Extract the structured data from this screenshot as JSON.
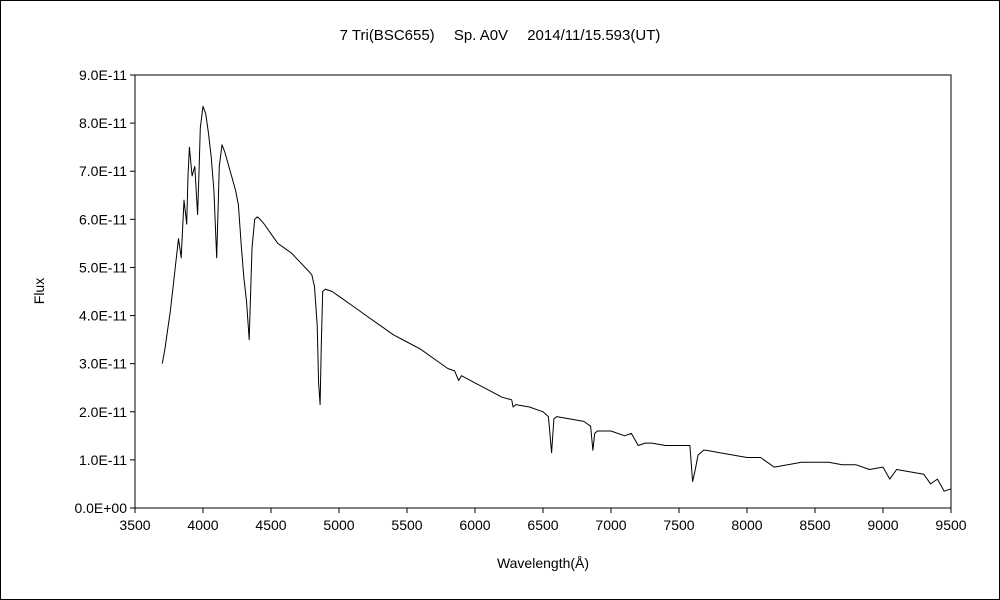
{
  "chart_data": {
    "type": "line",
    "title": "7 Tri(BSC655)　 Sp. A0V　 2014/11/15.593(UT)",
    "xlabel": "Wavelength(Å)",
    "ylabel": "Flux",
    "xlim": [
      3500,
      9500
    ],
    "ylim": [
      0,
      9e-11
    ],
    "x_ticks": [
      3500,
      4000,
      4500,
      5000,
      5500,
      6000,
      6500,
      7000,
      7500,
      8000,
      8500,
      9000,
      9500
    ],
    "x_tick_labels": [
      "3500",
      "4000",
      "4500",
      "5000",
      "5500",
      "6000",
      "6500",
      "7000",
      "7500",
      "8000",
      "8500",
      "9000",
      "9500"
    ],
    "y_ticks": [
      0,
      1e-11,
      2e-11,
      3e-11,
      4e-11,
      5e-11,
      6e-11,
      7e-11,
      8e-11,
      9e-11
    ],
    "y_tick_labels": [
      "0.0E+00",
      "1.0E-11",
      "2.0E-11",
      "3.0E-11",
      "4.0E-11",
      "5.0E-11",
      "6.0E-11",
      "7.0E-11",
      "8.0E-11",
      "9.0E-11"
    ],
    "grid": false,
    "legend": "none",
    "line_color": "#000000",
    "series": [
      {
        "x": [
          3700,
          3720,
          3740,
          3760,
          3780,
          3800,
          3820,
          3840,
          3860,
          3880,
          3890,
          3900,
          3920,
          3940,
          3960,
          3970,
          3980,
          4000,
          4020,
          4040,
          4060,
          4080,
          4101,
          4120,
          4140,
          4160,
          4180,
          4200,
          4220,
          4240,
          4260,
          4280,
          4300,
          4320,
          4340,
          4360,
          4380,
          4400,
          4420,
          4450,
          4500,
          4550,
          4600,
          4650,
          4700,
          4750,
          4800,
          4820,
          4840,
          4850,
          4861,
          4870,
          4880,
          4900,
          4950,
          5000,
          5100,
          5200,
          5300,
          5400,
          5500,
          5600,
          5700,
          5800,
          5850,
          5880,
          5900,
          6000,
          6100,
          6200,
          6270,
          6280,
          6300,
          6400,
          6500,
          6540,
          6563,
          6580,
          6600,
          6700,
          6800,
          6850,
          6867,
          6880,
          6900,
          7000,
          7100,
          7150,
          7200,
          7250,
          7300,
          7400,
          7500,
          7580,
          7600,
          7620,
          7640,
          7680,
          7700,
          7800,
          7900,
          8000,
          8100,
          8150,
          8200,
          8300,
          8400,
          8500,
          8600,
          8700,
          8800,
          8900,
          9000,
          9050,
          9100,
          9200,
          9300,
          9350,
          9400,
          9450,
          9500
        ],
        "y": [
          3e-11,
          3.3e-11,
          3.7e-11,
          4.1e-11,
          4.6e-11,
          5.1e-11,
          5.6e-11,
          5.2e-11,
          6.4e-11,
          5.9e-11,
          6.9e-11,
          7.5e-11,
          6.9e-11,
          7.1e-11,
          6.1e-11,
          6.9e-11,
          7.9e-11,
          8.35e-11,
          8.2e-11,
          7.8e-11,
          7.3e-11,
          6.6e-11,
          5.2e-11,
          7.1e-11,
          7.55e-11,
          7.4e-11,
          7.2e-11,
          7e-11,
          6.8e-11,
          6.6e-11,
          6.3e-11,
          5.5e-11,
          4.8e-11,
          4.3e-11,
          3.5e-11,
          5.4e-11,
          6e-11,
          6.05e-11,
          6e-11,
          5.9e-11,
          5.7e-11,
          5.5e-11,
          5.4e-11,
          5.3e-11,
          5.15e-11,
          5e-11,
          4.85e-11,
          4.6e-11,
          3.8e-11,
          2.6e-11,
          2.15e-11,
          3.4e-11,
          4.5e-11,
          4.55e-11,
          4.5e-11,
          4.4e-11,
          4.2e-11,
          4e-11,
          3.8e-11,
          3.6e-11,
          3.45e-11,
          3.3e-11,
          3.1e-11,
          2.9e-11,
          2.85e-11,
          2.65e-11,
          2.75e-11,
          2.6e-11,
          2.45e-11,
          2.3e-11,
          2.25e-11,
          2.1e-11,
          2.15e-11,
          2.1e-11,
          2e-11,
          1.9e-11,
          1.15e-11,
          1.85e-11,
          1.9e-11,
          1.85e-11,
          1.8e-11,
          1.7e-11,
          1.2e-11,
          1.55e-11,
          1.6e-11,
          1.6e-11,
          1.5e-11,
          1.55e-11,
          1.3e-11,
          1.35e-11,
          1.35e-11,
          1.3e-11,
          1.3e-11,
          1.3e-11,
          5.5e-12,
          8e-12,
          1.1e-11,
          1.2e-11,
          1.2e-11,
          1.15e-11,
          1.1e-11,
          1.05e-11,
          1.05e-11,
          9.5e-12,
          8.5e-12,
          9e-12,
          9.5e-12,
          9.5e-12,
          9.5e-12,
          9e-12,
          9e-12,
          8e-12,
          8.5e-12,
          6e-12,
          8e-12,
          7.5e-12,
          7e-12,
          5e-12,
          6e-12,
          3.5e-12,
          4e-12
        ]
      }
    ]
  }
}
